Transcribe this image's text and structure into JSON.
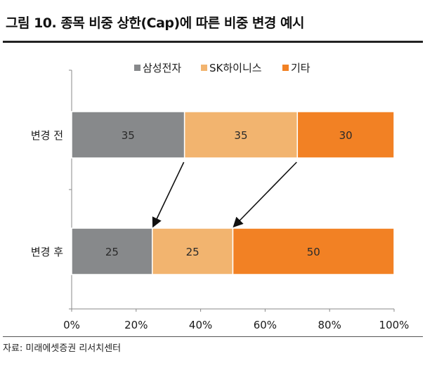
{
  "header": {
    "title": "그림 10. 종목 비중 상한(Cap)에 따른 비중 변경 예시"
  },
  "footer": {
    "source": "자료: 미래에셋증권 리서치센터"
  },
  "chart_data": {
    "type": "bar",
    "orientation": "horizontal",
    "stacked": true,
    "percent_stacked": true,
    "categories": [
      "변경 전",
      "변경 후"
    ],
    "series": [
      {
        "name": "삼성전자",
        "values": [
          35,
          25
        ],
        "color": "#87898b"
      },
      {
        "name": "SK하이니스",
        "values": [
          35,
          25
        ],
        "color": "#f2b46f"
      },
      {
        "name": "기타",
        "values": [
          30,
          50
        ],
        "color": "#f28124"
      }
    ],
    "xlim": [
      0,
      100
    ],
    "xticks": [
      "0%",
      "20%",
      "40%",
      "60%",
      "80%",
      "100%"
    ],
    "legend_position": "top-center",
    "grid": false,
    "annotations": [
      {
        "type": "arrow",
        "from": "변경 전 삼성전자 end",
        "to": "변경 후 삼성전자 end"
      },
      {
        "type": "arrow",
        "from": "변경 전 SK하이니스 end",
        "to": "변경 후 SK하이니스 end"
      }
    ]
  }
}
